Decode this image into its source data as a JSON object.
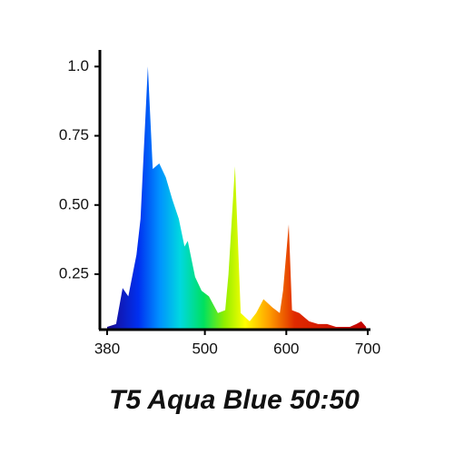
{
  "chart_data": {
    "type": "area",
    "title": "T5 Aqua Blue 50:50",
    "x": [
      380,
      391,
      399,
      406,
      416,
      421,
      430,
      436,
      444,
      452,
      460,
      468,
      475,
      479,
      488,
      496,
      505,
      516,
      525,
      529,
      537,
      544,
      555,
      563,
      572,
      583,
      592,
      596,
      603,
      607,
      616,
      628,
      639,
      650,
      661,
      670,
      678,
      686,
      692,
      698
    ],
    "values": [
      0.06,
      0.07,
      0.2,
      0.17,
      0.32,
      0.45,
      1.0,
      0.63,
      0.65,
      0.6,
      0.52,
      0.45,
      0.35,
      0.37,
      0.24,
      0.19,
      0.17,
      0.11,
      0.12,
      0.25,
      0.64,
      0.11,
      0.08,
      0.11,
      0.16,
      0.13,
      0.11,
      0.19,
      0.43,
      0.12,
      0.11,
      0.08,
      0.07,
      0.07,
      0.06,
      0.06,
      0.06,
      0.07,
      0.08,
      0.06
    ],
    "xlim": [
      380,
      700
    ],
    "xticks": [
      380,
      500,
      600,
      700
    ],
    "ylim": [
      0.05,
      1.06
    ],
    "yticks": [
      {
        "value": 0.25,
        "label": "0.25"
      },
      {
        "value": 0.5,
        "label": "0.50"
      },
      {
        "value": 0.75,
        "label": "0.75"
      },
      {
        "value": 1,
        "label": "1.0"
      }
    ],
    "grid": false
  }
}
